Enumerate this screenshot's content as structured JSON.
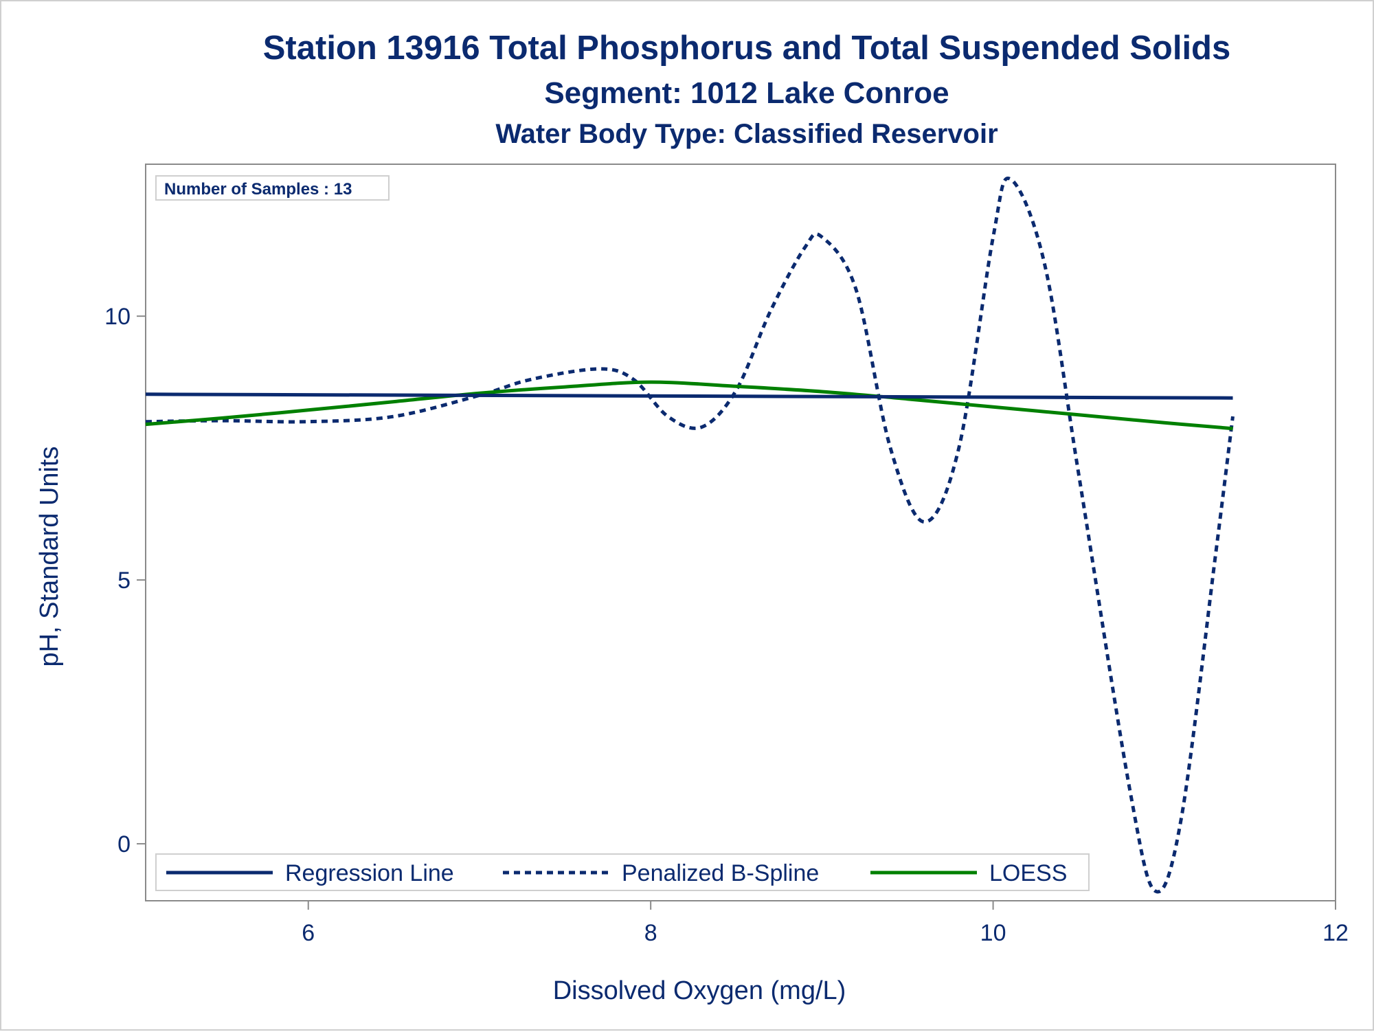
{
  "chart_data": {
    "type": "line",
    "title": "Station 13916  Total Phosphorus and Total Suspended Solids",
    "subtitle": "Segment: 1012  Lake Conroe",
    "subtitle2": "Water Body Type: Classified Reservoir",
    "xlabel": "Dissolved Oxygen (mg/L)",
    "ylabel": "pH, Standard Units",
    "xlim": [
      5.05,
      12.0
    ],
    "ylim": [
      -1.08,
      12.88
    ],
    "x_ticks": [
      6,
      8,
      10,
      12
    ],
    "y_ticks": [
      0,
      5,
      10
    ],
    "inset": "Number of Samples : 13",
    "legend_position": "bottom-left inside",
    "series": [
      {
        "name": "Regression Line",
        "style": "solid",
        "color": "#0b2a6f",
        "x": [
          5.05,
          11.4
        ],
        "y": [
          8.52,
          8.45
        ]
      },
      {
        "name": "Penalized B-Spline",
        "style": "dashed",
        "color": "#0b2a6f",
        "x": [
          5.05,
          5.5,
          6.0,
          6.5,
          7.0,
          7.3,
          7.7,
          7.9,
          8.1,
          8.3,
          8.5,
          8.7,
          8.9,
          9.0,
          9.2,
          9.4,
          9.6,
          9.8,
          10.0,
          10.1,
          10.3,
          10.5,
          10.8,
          10.95,
          11.1,
          11.3,
          11.4
        ],
        "y": [
          8.0,
          8.02,
          8.0,
          8.1,
          8.5,
          8.8,
          9.0,
          8.8,
          8.1,
          7.9,
          8.6,
          10.1,
          11.3,
          11.5,
          10.5,
          7.5,
          6.1,
          7.5,
          11.5,
          12.6,
          11.0,
          7.0,
          1.0,
          -0.9,
          0.5,
          5.5,
          8.1
        ]
      },
      {
        "name": "LOESS",
        "style": "solid",
        "color": "#008000",
        "x": [
          5.05,
          5.5,
          6.0,
          6.5,
          7.0,
          7.5,
          8.0,
          8.5,
          9.0,
          9.5,
          10.0,
          10.5,
          11.0,
          11.4
        ],
        "y": [
          7.95,
          8.07,
          8.22,
          8.38,
          8.54,
          8.66,
          8.75,
          8.67,
          8.57,
          8.43,
          8.28,
          8.13,
          7.98,
          7.87
        ]
      }
    ]
  }
}
